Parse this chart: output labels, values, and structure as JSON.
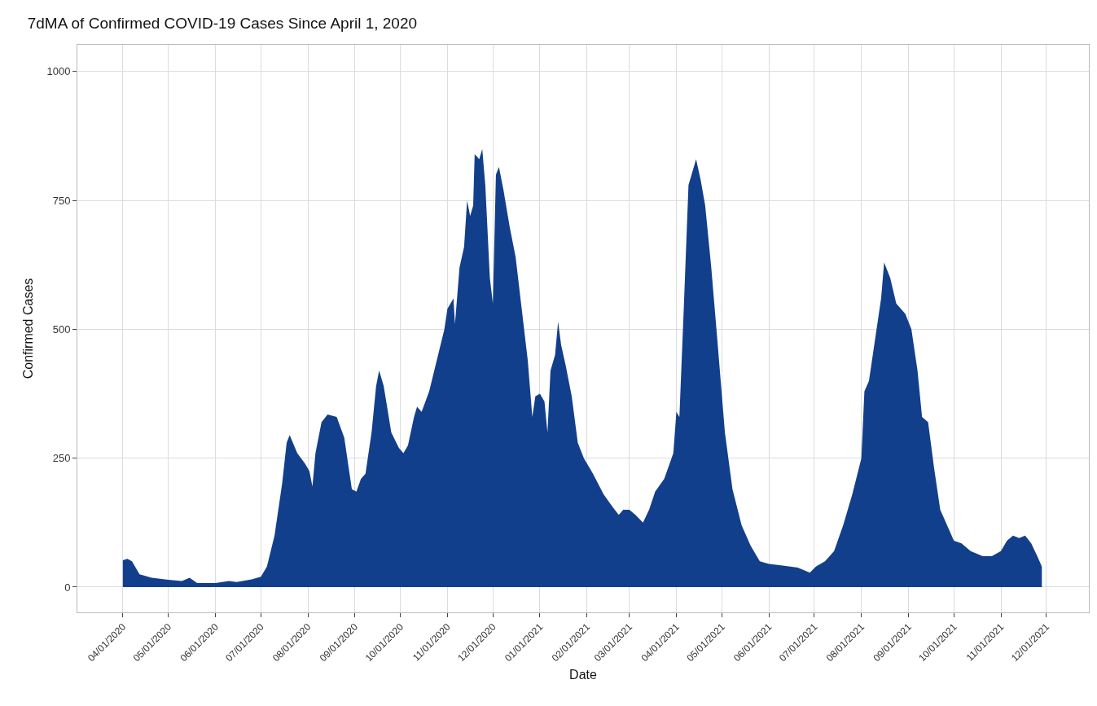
{
  "chart_data": {
    "type": "area",
    "title": "7dMA of Confirmed COVID-19 Cases Since April 1, 2020",
    "xlabel": "Date",
    "ylabel": "Confirmed Cases",
    "x": [
      "2020-04-01",
      "2020-04-04",
      "2020-04-07",
      "2020-04-12",
      "2020-04-20",
      "2020-05-01",
      "2020-05-10",
      "2020-05-15",
      "2020-05-20",
      "2020-06-01",
      "2020-06-10",
      "2020-06-15",
      "2020-06-25",
      "2020-07-01",
      "2020-07-05",
      "2020-07-10",
      "2020-07-15",
      "2020-07-18",
      "2020-07-20",
      "2020-07-25",
      "2020-07-30",
      "2020-08-02",
      "2020-08-04",
      "2020-08-06",
      "2020-08-10",
      "2020-08-14",
      "2020-08-20",
      "2020-08-25",
      "2020-08-28",
      "2020-08-30",
      "2020-09-02",
      "2020-09-05",
      "2020-09-08",
      "2020-09-12",
      "2020-09-15",
      "2020-09-17",
      "2020-09-20",
      "2020-09-25",
      "2020-09-30",
      "2020-10-03",
      "2020-10-06",
      "2020-10-10",
      "2020-10-12",
      "2020-10-15",
      "2020-10-20",
      "2020-10-25",
      "2020-10-30",
      "2020-11-01",
      "2020-11-05",
      "2020-11-06",
      "2020-11-09",
      "2020-11-12",
      "2020-11-14",
      "2020-11-16",
      "2020-11-18",
      "2020-11-19",
      "2020-11-22",
      "2020-11-24",
      "2020-11-26",
      "2020-11-29",
      "2020-12-01",
      "2020-12-03",
      "2020-12-05",
      "2020-12-08",
      "2020-12-12",
      "2020-12-16",
      "2020-12-20",
      "2020-12-24",
      "2020-12-27",
      "2020-12-29",
      "2021-01-01",
      "2021-01-04",
      "2021-01-06",
      "2021-01-08",
      "2021-01-11",
      "2021-01-13",
      "2021-01-15",
      "2021-01-18",
      "2021-01-22",
      "2021-01-26",
      "2021-01-30",
      "2021-02-05",
      "2021-02-12",
      "2021-02-18",
      "2021-02-22",
      "2021-02-25",
      "2021-03-01",
      "2021-03-05",
      "2021-03-10",
      "2021-03-14",
      "2021-03-18",
      "2021-03-24",
      "2021-03-30",
      "2021-04-01",
      "2021-04-03",
      "2021-04-06",
      "2021-04-09",
      "2021-04-12",
      "2021-04-14",
      "2021-04-17",
      "2021-04-20",
      "2021-04-24",
      "2021-04-28",
      "2021-05-03",
      "2021-05-08",
      "2021-05-14",
      "2021-05-20",
      "2021-05-26",
      "2021-06-01",
      "2021-06-10",
      "2021-06-20",
      "2021-06-28",
      "2021-07-02",
      "2021-07-08",
      "2021-07-14",
      "2021-07-20",
      "2021-07-26",
      "2021-08-01",
      "2021-08-03",
      "2021-08-06",
      "2021-08-10",
      "2021-08-14",
      "2021-08-16",
      "2021-08-20",
      "2021-08-24",
      "2021-08-30",
      "2021-09-03",
      "2021-09-07",
      "2021-09-10",
      "2021-09-14",
      "2021-09-18",
      "2021-09-22",
      "2021-09-28",
      "2021-10-01",
      "2021-10-06",
      "2021-10-12",
      "2021-10-20",
      "2021-10-26",
      "2021-11-01",
      "2021-11-05",
      "2021-11-09",
      "2021-11-13",
      "2021-11-17",
      "2021-11-21",
      "2021-11-25",
      "2021-11-28"
    ],
    "series": [
      {
        "color": "#123f8c",
        "values": [
          52,
          55,
          50,
          25,
          18,
          14,
          12,
          18,
          8,
          8,
          12,
          10,
          15,
          20,
          40,
          100,
          200,
          280,
          295,
          260,
          240,
          225,
          195,
          260,
          320,
          335,
          330,
          290,
          230,
          190,
          185,
          210,
          220,
          300,
          390,
          420,
          390,
          300,
          270,
          260,
          275,
          330,
          350,
          340,
          380,
          440,
          500,
          540,
          560,
          510,
          620,
          660,
          750,
          720,
          740,
          840,
          830,
          850,
          780,
          600,
          550,
          800,
          815,
          770,
          700,
          640,
          540,
          440,
          330,
          370,
          375,
          360,
          300,
          420,
          450,
          515,
          470,
          430,
          370,
          280,
          250,
          220,
          180,
          155,
          140,
          150,
          150,
          140,
          125,
          150,
          185,
          210,
          260,
          340,
          330,
          550,
          780,
          810,
          830,
          790,
          740,
          620,
          480,
          300,
          190,
          120,
          80,
          50,
          45,
          42,
          38,
          28,
          40,
          50,
          70,
          120,
          180,
          250,
          380,
          400,
          480,
          560,
          630,
          600,
          550,
          530,
          500,
          420,
          330,
          320,
          230,
          150,
          110,
          90,
          85,
          70,
          60,
          60,
          70,
          90,
          100,
          95,
          100,
          85,
          60,
          40
        ]
      }
    ],
    "xlim": [
      "2020-03-02",
      "2021-12-29"
    ],
    "xticks": [
      {
        "value": "2020-04-01",
        "label": "04/01/2020"
      },
      {
        "value": "2020-05-01",
        "label": "05/01/2020"
      },
      {
        "value": "2020-06-01",
        "label": "06/01/2020"
      },
      {
        "value": "2020-07-01",
        "label": "07/01/2020"
      },
      {
        "value": "2020-08-01",
        "label": "08/01/2020"
      },
      {
        "value": "2020-09-01",
        "label": "09/01/2020"
      },
      {
        "value": "2020-10-01",
        "label": "10/01/2020"
      },
      {
        "value": "2020-11-01",
        "label": "11/01/2020"
      },
      {
        "value": "2020-12-01",
        "label": "12/01/2020"
      },
      {
        "value": "2021-01-01",
        "label": "01/01/2021"
      },
      {
        "value": "2021-02-01",
        "label": "02/01/2021"
      },
      {
        "value": "2021-03-01",
        "label": "03/01/2021"
      },
      {
        "value": "2021-04-01",
        "label": "04/01/2021"
      },
      {
        "value": "2021-05-01",
        "label": "05/01/2021"
      },
      {
        "value": "2021-06-01",
        "label": "06/01/2021"
      },
      {
        "value": "2021-07-01",
        "label": "07/01/2021"
      },
      {
        "value": "2021-08-01",
        "label": "08/01/2021"
      },
      {
        "value": "2021-09-01",
        "label": "09/01/2021"
      },
      {
        "value": "2021-10-01",
        "label": "10/01/2021"
      },
      {
        "value": "2021-11-01",
        "label": "11/01/2021"
      },
      {
        "value": "2021-12-01",
        "label": "12/01/2021"
      }
    ],
    "ylim": [
      -49,
      1052
    ],
    "yticks": [
      0,
      250,
      500,
      750,
      1000
    ],
    "grid": true
  }
}
